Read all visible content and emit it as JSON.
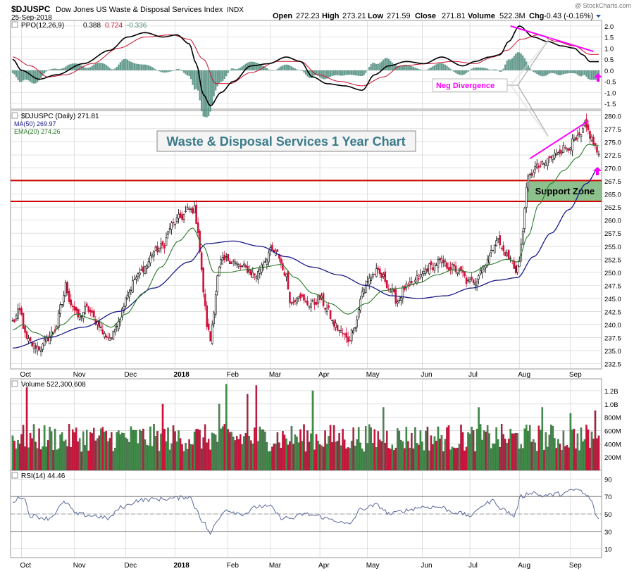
{
  "colors": {
    "up": "#3e8e46",
    "down": "#d0103a",
    "ma50": "#1a1a8a",
    "ema20": "#2a7a2a",
    "ppo_line": "#000000",
    "ppo_signal": "#c8102e",
    "ppo_hist": "#4a8a7a",
    "annotation": "#ff00ff",
    "support_fill": "#8cc08c",
    "support_line": "#d00000",
    "grid": "#cccccc",
    "rsi": "#5a6a9a"
  },
  "header": {
    "symbol": "$DJUSPC",
    "name": "Dow Jones US Waste & Disposal Services Index",
    "exchange": "INDX",
    "date": "25-Sep-2018",
    "watermark": "@ StockCharts.com",
    "open_label": "Open",
    "open": "272.23",
    "high_label": "High",
    "high": "273.21",
    "low_label": "Low",
    "low": "271.59",
    "close_label": "Close",
    "close": "271.81",
    "volume_label": "Volume",
    "volume": "522.3M",
    "chg_label": "Chg",
    "chg": "-0.43 (-0.16%)"
  },
  "chart_data": [
    {
      "panel": "ppo",
      "type": "line",
      "legend_prefix": "PPO(12,26,9)",
      "legend_values": [
        "0.388",
        "0.724",
        "-0.336"
      ],
      "ylim": [
        -1.75,
        2.25
      ],
      "yticks": [
        "2.0",
        "1.5",
        "1.0",
        "0.5",
        "0.0",
        "-0.5",
        "-1.0",
        "-1.5"
      ],
      "ytick_values": [
        2.0,
        1.5,
        1.0,
        0.5,
        0.0,
        -0.5,
        -1.0,
        -1.5
      ],
      "ppo_anchors": [
        [
          0,
          0.5
        ],
        [
          5,
          0.0
        ],
        [
          15,
          -0.4
        ],
        [
          25,
          -0.2
        ],
        [
          40,
          0.3
        ],
        [
          55,
          0.9
        ],
        [
          65,
          1.5
        ],
        [
          75,
          1.7
        ],
        [
          85,
          1.5
        ],
        [
          93,
          1.6
        ],
        [
          100,
          1.2
        ],
        [
          104,
          0.3
        ],
        [
          108,
          -1.1
        ],
        [
          112,
          -1.6
        ],
        [
          118,
          -1.0
        ],
        [
          125,
          -0.5
        ],
        [
          135,
          0.2
        ],
        [
          145,
          0.3
        ],
        [
          155,
          0.6
        ],
        [
          163,
          0.4
        ],
        [
          170,
          -0.3
        ],
        [
          178,
          -0.6
        ],
        [
          188,
          -0.7
        ],
        [
          198,
          -0.9
        ],
        [
          205,
          -0.2
        ],
        [
          213,
          0.2
        ],
        [
          223,
          0.4
        ],
        [
          233,
          0.3
        ],
        [
          243,
          0.6
        ],
        [
          255,
          0.2
        ],
        [
          262,
          0.4
        ],
        [
          270,
          0.6
        ],
        [
          276,
          0.7
        ],
        [
          281,
          1.3
        ],
        [
          287,
          2.0
        ],
        [
          295,
          1.5
        ],
        [
          303,
          1.3
        ],
        [
          311,
          1.1
        ],
        [
          318,
          1.0
        ],
        [
          323,
          0.7
        ],
        [
          327,
          0.39
        ]
      ],
      "signal_anchors": [
        [
          0,
          0.6
        ],
        [
          10,
          0.2
        ],
        [
          20,
          -0.3
        ],
        [
          30,
          -0.2
        ],
        [
          45,
          0.3
        ],
        [
          60,
          1.0
        ],
        [
          75,
          1.5
        ],
        [
          90,
          1.6
        ],
        [
          100,
          1.4
        ],
        [
          108,
          0.5
        ],
        [
          115,
          -0.6
        ],
        [
          123,
          -0.6
        ],
        [
          135,
          -0.1
        ],
        [
          150,
          0.4
        ],
        [
          163,
          0.4
        ],
        [
          173,
          -0.2
        ],
        [
          185,
          -0.5
        ],
        [
          198,
          -0.7
        ],
        [
          210,
          -0.3
        ],
        [
          220,
          0.2
        ],
        [
          235,
          0.3
        ],
        [
          250,
          0.4
        ],
        [
          262,
          0.3
        ],
        [
          272,
          0.6
        ],
        [
          280,
          0.9
        ],
        [
          288,
          1.4
        ],
        [
          298,
          1.6
        ],
        [
          308,
          1.3
        ],
        [
          318,
          1.1
        ],
        [
          327,
          0.72
        ]
      ],
      "annotation": "Neg Divergence"
    },
    {
      "panel": "price",
      "type": "candlestick",
      "legend": [
        "$DJUSPC (Daily) 271.81",
        "MA(50) 269.97",
        "EMA(20) 274.26"
      ],
      "title_box": "Waste & Disposal Services 1 Year Chart",
      "ylim": [
        231.5,
        281.0
      ],
      "yticks": [
        "280.0",
        "277.5",
        "275.0",
        "272.5",
        "270.0",
        "267.5",
        "265.0",
        "262.5",
        "260.0",
        "257.5",
        "255.0",
        "252.5",
        "250.0",
        "247.5",
        "245.0",
        "242.5",
        "240.0",
        "237.5",
        "235.0",
        "232.5"
      ],
      "ytick_values": [
        280,
        277.5,
        275,
        272.5,
        270,
        267.5,
        265,
        262.5,
        260,
        257.5,
        255,
        252.5,
        250,
        247.5,
        245,
        242.5,
        240,
        237.5,
        235,
        232.5
      ],
      "close_anchors": [
        [
          0,
          240.5
        ],
        [
          4,
          242.5
        ],
        [
          8,
          237
        ],
        [
          12,
          236
        ],
        [
          16,
          235.5
        ],
        [
          20,
          237.5
        ],
        [
          24,
          239
        ],
        [
          28,
          244
        ],
        [
          30,
          247.5
        ],
        [
          33,
          244
        ],
        [
          37,
          241.5
        ],
        [
          42,
          243
        ],
        [
          48,
          240.5
        ],
        [
          52,
          238
        ],
        [
          56,
          237.5
        ],
        [
          60,
          241
        ],
        [
          65,
          246
        ],
        [
          70,
          249
        ],
        [
          75,
          251
        ],
        [
          80,
          254
        ],
        [
          85,
          255
        ],
        [
          90,
          259
        ],
        [
          95,
          260.5
        ],
        [
          100,
          262
        ],
        [
          103,
          262
        ],
        [
          105,
          258
        ],
        [
          107,
          250
        ],
        [
          109,
          243
        ],
        [
          110,
          240
        ],
        [
          112,
          237
        ],
        [
          114,
          243
        ],
        [
          116,
          249
        ],
        [
          118,
          252
        ],
        [
          122,
          252.5
        ],
        [
          130,
          251
        ],
        [
          138,
          249.5
        ],
        [
          142,
          252
        ],
        [
          146,
          254
        ],
        [
          150,
          253.5
        ],
        [
          154,
          250
        ],
        [
          158,
          244
        ],
        [
          162,
          246
        ],
        [
          166,
          244
        ],
        [
          170,
          244
        ],
        [
          174,
          245
        ],
        [
          178,
          243
        ],
        [
          182,
          240
        ],
        [
          186,
          238.5
        ],
        [
          190,
          237
        ],
        [
          194,
          240
        ],
        [
          198,
          246
        ],
        [
          202,
          249
        ],
        [
          206,
          250
        ],
        [
          210,
          249
        ],
        [
          214,
          246.5
        ],
        [
          218,
          244.5
        ],
        [
          222,
          247
        ],
        [
          226,
          247.5
        ],
        [
          230,
          249
        ],
        [
          236,
          251
        ],
        [
          242,
          252
        ],
        [
          248,
          251
        ],
        [
          254,
          250
        ],
        [
          258,
          248
        ],
        [
          262,
          248.5
        ],
        [
          266,
          251
        ],
        [
          270,
          253
        ],
        [
          274,
          256.5
        ],
        [
          278,
          254
        ],
        [
          282,
          252.5
        ],
        [
          285,
          250.5
        ],
        [
          287,
          252
        ],
        [
          289,
          258
        ],
        [
          290,
          263
        ],
        [
          292,
          268
        ],
        [
          296,
          270
        ],
        [
          300,
          270.5
        ],
        [
          305,
          272
        ],
        [
          310,
          273.5
        ],
        [
          314,
          274
        ],
        [
          318,
          275
        ],
        [
          322,
          276
        ],
        [
          324,
          278
        ],
        [
          326,
          277
        ],
        [
          328,
          275.5
        ],
        [
          330,
          274
        ],
        [
          332,
          272
        ]
      ],
      "ma50_anchors": [
        [
          0,
          235.5
        ],
        [
          20,
          237.5
        ],
        [
          40,
          239.5
        ],
        [
          60,
          242.5
        ],
        [
          80,
          247
        ],
        [
          100,
          252
        ],
        [
          110,
          255.5
        ],
        [
          125,
          256
        ],
        [
          140,
          255
        ],
        [
          155,
          253
        ],
        [
          170,
          251
        ],
        [
          185,
          249.5
        ],
        [
          200,
          247.5
        ],
        [
          215,
          245.5
        ],
        [
          230,
          245
        ],
        [
          245,
          245.5
        ],
        [
          260,
          247
        ],
        [
          275,
          248.5
        ],
        [
          286,
          249
        ],
        [
          295,
          253
        ],
        [
          305,
          257.5
        ],
        [
          315,
          262
        ],
        [
          325,
          267
        ],
        [
          332,
          269.97
        ]
      ],
      "ema20_anchors": [
        [
          0,
          239
        ],
        [
          6,
          240
        ],
        [
          12,
          238.5
        ],
        [
          20,
          237.5
        ],
        [
          28,
          240
        ],
        [
          36,
          242
        ],
        [
          46,
          241
        ],
        [
          56,
          239.5
        ],
        [
          64,
          242
        ],
        [
          74,
          246
        ],
        [
          84,
          251
        ],
        [
          94,
          256
        ],
        [
          102,
          258.5
        ],
        [
          108,
          255
        ],
        [
          114,
          250
        ],
        [
          122,
          250
        ],
        [
          132,
          250.5
        ],
        [
          142,
          251
        ],
        [
          152,
          251.5
        ],
        [
          160,
          249
        ],
        [
          170,
          246
        ],
        [
          180,
          244
        ],
        [
          190,
          242
        ],
        [
          200,
          244
        ],
        [
          210,
          246.5
        ],
        [
          220,
          247
        ],
        [
          230,
          248
        ],
        [
          240,
          249.5
        ],
        [
          250,
          250.5
        ],
        [
          260,
          250
        ],
        [
          270,
          251.5
        ],
        [
          280,
          252.5
        ],
        [
          286,
          252
        ],
        [
          292,
          257
        ],
        [
          298,
          263
        ],
        [
          305,
          267
        ],
        [
          312,
          269.5
        ],
        [
          320,
          272
        ],
        [
          326,
          274.5
        ],
        [
          332,
          274.26
        ]
      ],
      "support_zone": [
        263.6,
        267.6
      ],
      "support_label": "Support Zone"
    },
    {
      "panel": "volume",
      "type": "bar",
      "legend": "Volume 522,300,608",
      "ylim": [
        0,
        1.38
      ],
      "yticks": [
        "1.2B",
        "1.0B",
        "800M",
        "600M",
        "400M",
        "200M"
      ],
      "ytick_values": [
        1.2,
        1.0,
        0.8,
        0.6,
        0.4,
        0.2
      ],
      "units": "billions",
      "spike_bars": [
        [
          8,
          1.25
        ],
        [
          85,
          1.0
        ],
        [
          117,
          1.0
        ],
        [
          121,
          1.3
        ],
        [
          133,
          1.15
        ],
        [
          138,
          1.28
        ],
        [
          170,
          1.2
        ],
        [
          210,
          0.95
        ],
        [
          264,
          0.95
        ],
        [
          300,
          0.95
        ],
        [
          316,
          0.86
        ],
        [
          330,
          0.9
        ]
      ],
      "last_volume": 0.5223
    },
    {
      "panel": "rsi",
      "type": "line",
      "legend": "RSI(14) 44.46",
      "ylim": [
        0,
        100
      ],
      "yticks": [
        "90",
        "70",
        "50",
        "30",
        "10"
      ],
      "ytick_values": [
        90,
        70,
        50,
        30,
        10
      ],
      "rsi_anchors": [
        [
          0,
          65
        ],
        [
          6,
          70
        ],
        [
          10,
          48
        ],
        [
          20,
          45
        ],
        [
          30,
          63
        ],
        [
          36,
          50
        ],
        [
          46,
          48
        ],
        [
          54,
          45
        ],
        [
          62,
          58
        ],
        [
          72,
          66
        ],
        [
          82,
          67
        ],
        [
          92,
          68
        ],
        [
          100,
          70
        ],
        [
          104,
          56
        ],
        [
          108,
          40
        ],
        [
          112,
          28
        ],
        [
          116,
          42
        ],
        [
          120,
          55
        ],
        [
          130,
          50
        ],
        [
          140,
          59
        ],
        [
          146,
          58
        ],
        [
          152,
          46
        ],
        [
          158,
          45
        ],
        [
          165,
          50
        ],
        [
          172,
          48
        ],
        [
          180,
          44
        ],
        [
          190,
          38
        ],
        [
          198,
          56
        ],
        [
          206,
          60
        ],
        [
          214,
          50
        ],
        [
          222,
          54
        ],
        [
          232,
          58
        ],
        [
          242,
          58
        ],
        [
          250,
          52
        ],
        [
          260,
          48
        ],
        [
          266,
          60
        ],
        [
          272,
          65
        ],
        [
          278,
          55
        ],
        [
          284,
          48
        ],
        [
          288,
          70
        ],
        [
          294,
          75
        ],
        [
          300,
          71
        ],
        [
          310,
          73
        ],
        [
          320,
          78
        ],
        [
          326,
          70
        ],
        [
          332,
          44.46
        ]
      ]
    },
    {
      "panel": "x-axis",
      "type": "table",
      "month_labels": [
        {
          "label": "Oct",
          "index": 5
        },
        {
          "label": "Nov",
          "index": 35
        },
        {
          "label": "Dec",
          "index": 64
        },
        {
          "label": "2018",
          "index": 92
        },
        {
          "label": "Feb",
          "index": 122
        },
        {
          "label": "Mar",
          "index": 146
        },
        {
          "label": "Apr",
          "index": 174
        },
        {
          "label": "May",
          "index": 201
        },
        {
          "label": "Jun",
          "index": 232
        },
        {
          "label": "Jul",
          "index": 259
        },
        {
          "label": "Aug",
          "index": 287
        },
        {
          "label": "Sep",
          "index": 316
        }
      ],
      "total_bars": 333
    }
  ]
}
